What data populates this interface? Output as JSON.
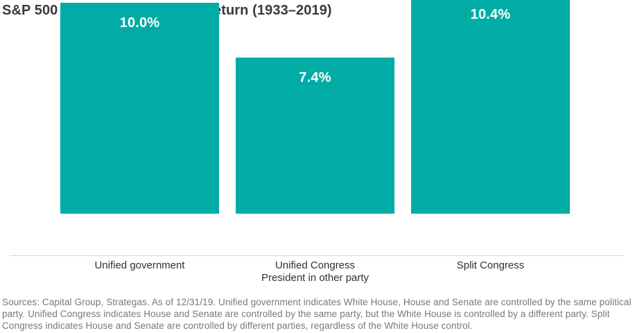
{
  "title": "S&P 500 Index average annual return (1933–2019)",
  "chart_data": {
    "type": "bar",
    "title": "S&P 500 Index average annual return (1933–2019)",
    "categories": [
      "Unified government",
      "Unified Congress\nPresident in other party",
      "Split Congress"
    ],
    "values": [
      10.0,
      7.4,
      10.4
    ],
    "value_labels": [
      "10.0%",
      "7.4%",
      "10.4%"
    ],
    "xlabel": "",
    "ylabel": "",
    "ylim": [
      0,
      10.4
    ],
    "grid": false,
    "legend": "none",
    "bar_color": "#00ACA5",
    "value_label_color": "#ffffff",
    "axis_line_color": "#d8d8d8"
  },
  "footer": {
    "source_text": "Sources: Capital Group, Strategas. As of 12/31/19. Unified government indicates White House, House and Senate are controlled by the same political party. Unified Congress indicates House and Senate are controlled by the same party, but the White House is controlled by a different party. Split Congress indicates House and Senate are controlled by different parties, regardless of the White House control."
  },
  "colors": {
    "accent": "#00ACA5",
    "title_text": "#3a3a3c",
    "category_text": "#2f3033",
    "footer_text": "#77787b",
    "axis_line": "#d8d8d8",
    "background": "#ffffff"
  }
}
